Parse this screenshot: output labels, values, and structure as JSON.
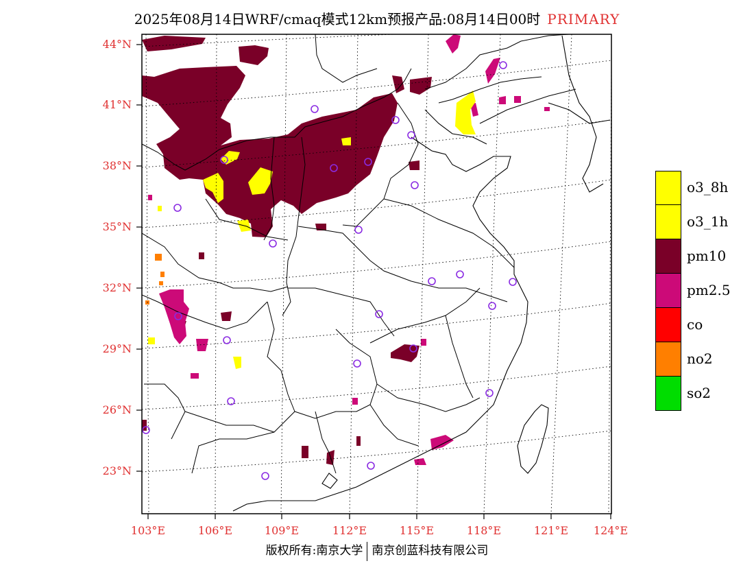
{
  "title": {
    "main": "2025年08月14日WRF/cmaq模式12km预报产品:08月14日00时",
    "tag": "PRIMARY"
  },
  "lat_labels": [
    "44°N",
    "41°N",
    "38°N",
    "35°N",
    "32°N",
    "29°N",
    "26°N",
    "23°N"
  ],
  "lon_labels": [
    "103°E",
    "106°E",
    "109°E",
    "112°E",
    "115°E",
    "118°E",
    "121°E",
    "124°E"
  ],
  "legend": [
    {
      "label": "o3_8h",
      "color": "#ffff00"
    },
    {
      "label": "o3_1h",
      "color": "#ffff00"
    },
    {
      "label": "pm10",
      "color": "#7a0028"
    },
    {
      "label": "pm2.5",
      "color": "#cc0a78"
    },
    {
      "label": "co",
      "color": "#ff0000"
    },
    {
      "label": "no2",
      "color": "#ff7f00"
    },
    {
      "label": "so2",
      "color": "#00dd00"
    }
  ],
  "footer": {
    "left": "版权所有:南京大学",
    "right": "南京创蓝科技有限公司"
  },
  "colors": {
    "pm10": "#7a0028",
    "pm25": "#cc0a78",
    "o3": "#ffff00",
    "no2": "#ff7f00",
    "city_marker": "#8a2be2",
    "axis_label": "#e03030"
  }
}
